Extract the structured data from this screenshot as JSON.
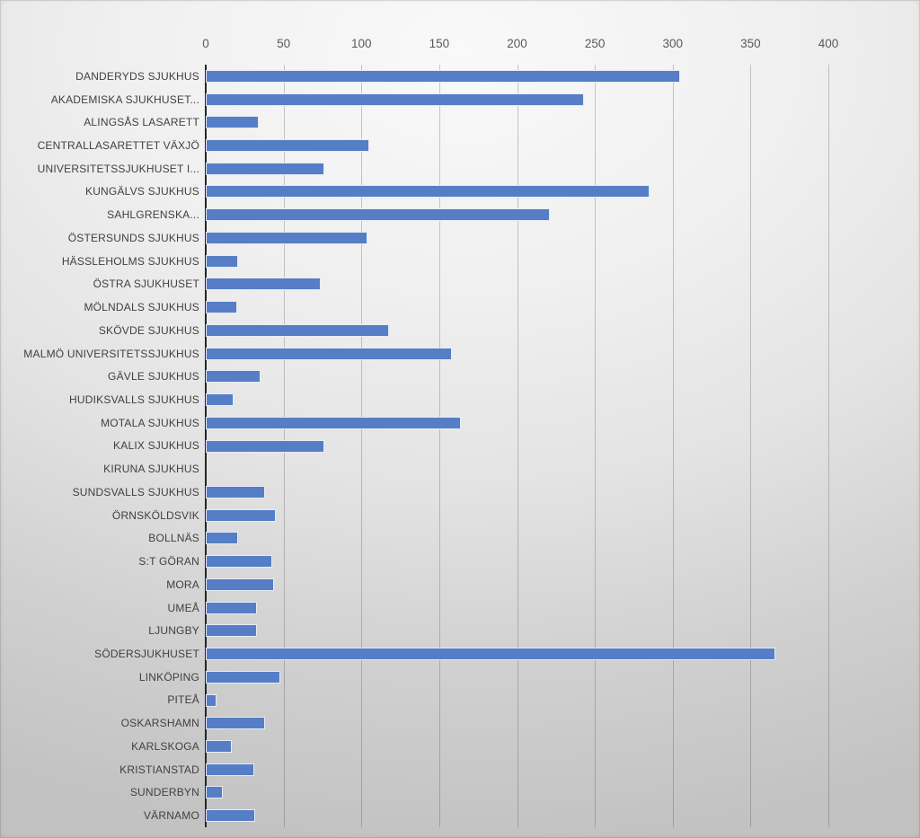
{
  "chart_data": {
    "type": "bar",
    "orientation": "horizontal",
    "categories": [
      "DANDERYDS SJUKHUS",
      "AKADEMISKA SJUKHUSET...",
      "ALINGSÅS LASARETT",
      "CENTRALLASARETTET VÄXJÖ",
      "UNIVERSITETSSJUKHUSET I...",
      "KUNGÄLVS SJUKHUS",
      "SAHLGRENSKA...",
      "ÖSTERSUNDS SJUKHUS",
      "HÄSSLEHOLMS SJUKHUS",
      "ÖSTRA SJUKHUSET",
      "MÖLNDALS SJUKHUS",
      "SKÖVDE SJUKHUS",
      "MALMÖ UNIVERSITETSSJUKHUS",
      "GÄVLE SJUKHUS",
      "HUDIKSVALLS SJUKHUS",
      "MOTALA SJUKHUS",
      "KALIX SJUKHUS",
      "KIRUNA SJUKHUS",
      "SUNDSVALLS SJUKHUS",
      "ÖRNSKÖLDSVIK",
      "BOLLNÄS",
      "S:T GÖRAN",
      "MORA",
      "UMEÅ",
      "LJUNGBY",
      "SÖDERSJUKHUSET",
      "LINKÖPING",
      "PITEÅ",
      "OSKARSHAMN",
      "KARLSKOGA",
      "KRISTIANSTAD",
      "SUNDERBYN",
      "VÄRNAMO"
    ],
    "values": [
      305,
      243,
      34,
      105,
      76,
      285,
      221,
      104,
      21,
      74,
      20,
      118,
      158,
      35,
      18,
      164,
      76,
      0,
      38,
      45,
      21,
      43,
      44,
      33,
      33,
      366,
      48,
      7,
      38,
      17,
      31,
      11,
      32
    ],
    "xlim": [
      0,
      400
    ],
    "xticks": [
      0,
      50,
      100,
      150,
      200,
      250,
      300,
      350,
      400
    ],
    "grid": "vertical",
    "legend": "none",
    "bar_color": "#567EC6",
    "bar_border_color": "#E6EBF4",
    "axis_line_color": "#262626",
    "gridline_color": "rgba(70,70,70,0.28)",
    "tick_label_color": "#595959",
    "category_label_color": "#404040"
  }
}
